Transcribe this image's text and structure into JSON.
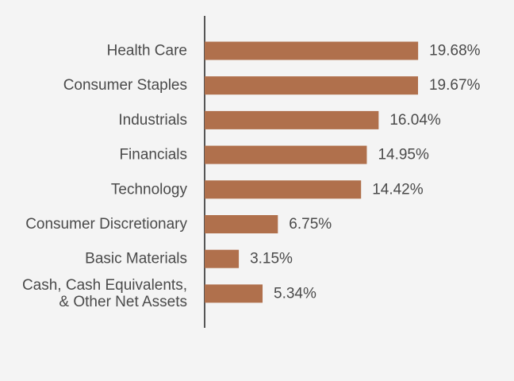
{
  "chart_data": {
    "type": "bar",
    "orientation": "horizontal",
    "categories": [
      "Health Care",
      "Consumer Staples",
      "Industrials",
      "Financials",
      "Technology",
      "Consumer Discretionary",
      "Basic Materials",
      "Cash, Cash Equivalents,\n& Other Net Assets"
    ],
    "values": [
      19.68,
      19.67,
      16.04,
      14.95,
      14.42,
      6.75,
      3.15,
      5.34
    ],
    "value_labels": [
      "19.68%",
      "19.67%",
      "16.04%",
      "14.95%",
      "14.42%",
      "6.75%",
      "3.15%",
      "5.34%"
    ],
    "xlim": [
      0,
      23.4
    ],
    "grid": false,
    "legend": "none",
    "bar_color": "#b0704c",
    "axis_color": "#555555",
    "text_color": "#4a4a4a",
    "background": "#f4f4f4"
  }
}
